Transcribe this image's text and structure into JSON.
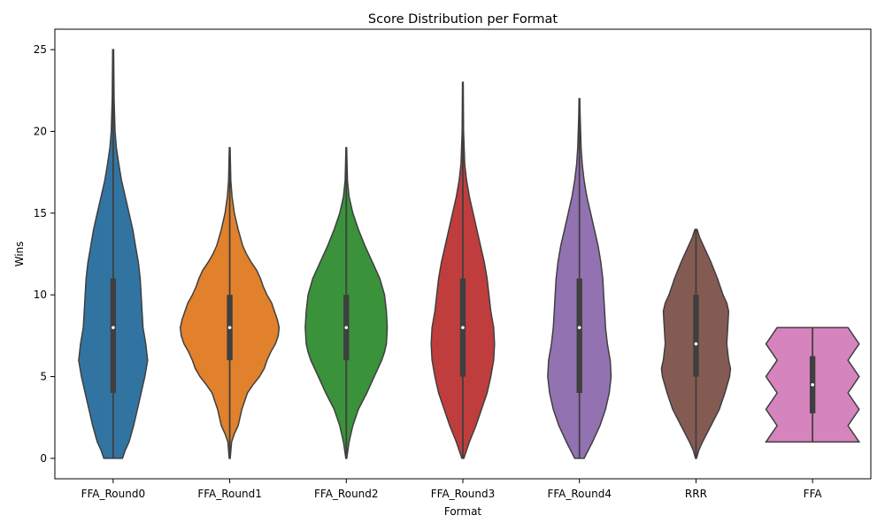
{
  "chart_data": {
    "type": "violin",
    "title": "Score Distribution per Format",
    "xlabel": "Format",
    "ylabel": "Wins",
    "ylim": [
      -1.25,
      26.25
    ],
    "yticks": [
      0,
      5,
      10,
      15,
      20,
      25
    ],
    "grid": false,
    "legend": false,
    "categories": [
      "FFA_Round0",
      "FFA_Round1",
      "FFA_Round2",
      "FFA_Round3",
      "FFA_Round4",
      "RRR",
      "FFA"
    ],
    "series": [
      {
        "color": "#3274a1",
        "min": 0,
        "q1": 4,
        "median": 8,
        "q3": 11,
        "max": 25,
        "outline": [
          [
            0,
            0.1
          ],
          [
            0.5,
            0.13
          ],
          [
            1,
            0.17
          ],
          [
            2,
            0.22
          ],
          [
            3,
            0.26
          ],
          [
            4,
            0.3
          ],
          [
            5,
            0.34
          ],
          [
            6,
            0.37
          ],
          [
            7,
            0.35
          ],
          [
            8,
            0.32
          ],
          [
            9,
            0.31
          ],
          [
            10,
            0.3
          ],
          [
            11,
            0.29
          ],
          [
            12,
            0.27
          ],
          [
            13,
            0.24
          ],
          [
            14,
            0.21
          ],
          [
            15,
            0.17
          ],
          [
            16,
            0.13
          ],
          [
            17,
            0.09
          ],
          [
            18,
            0.06
          ],
          [
            19,
            0.035
          ],
          [
            20,
            0.02
          ],
          [
            22,
            0.01
          ],
          [
            25,
            0.005
          ]
        ]
      },
      {
        "color": "#e1812c",
        "min": 0,
        "q1": 6,
        "median": 8,
        "q3": 10,
        "max": 19,
        "outline": [
          [
            0,
            0.005
          ],
          [
            1,
            0.02
          ],
          [
            1.5,
            0.05
          ],
          [
            2,
            0.09
          ],
          [
            3,
            0.13
          ],
          [
            4,
            0.19
          ],
          [
            4.5,
            0.25
          ],
          [
            5,
            0.32
          ],
          [
            5.5,
            0.37
          ],
          [
            6,
            0.4
          ],
          [
            6.5,
            0.44
          ],
          [
            7,
            0.49
          ],
          [
            7.5,
            0.52
          ],
          [
            8,
            0.53
          ],
          [
            8.5,
            0.51
          ],
          [
            9,
            0.48
          ],
          [
            9.5,
            0.45
          ],
          [
            10,
            0.4
          ],
          [
            10.5,
            0.36
          ],
          [
            11,
            0.33
          ],
          [
            11.5,
            0.29
          ],
          [
            12,
            0.23
          ],
          [
            12.5,
            0.18
          ],
          [
            13,
            0.14
          ],
          [
            14,
            0.09
          ],
          [
            15,
            0.05
          ],
          [
            16,
            0.025
          ],
          [
            17,
            0.012
          ],
          [
            19,
            0.004
          ]
        ]
      },
      {
        "color": "#3a923a",
        "min": 0,
        "q1": 6,
        "median": 8,
        "q3": 10,
        "max": 19,
        "outline": [
          [
            0,
            0.005
          ],
          [
            1,
            0.03
          ],
          [
            2,
            0.07
          ],
          [
            3,
            0.13
          ],
          [
            4,
            0.22
          ],
          [
            5,
            0.3
          ],
          [
            6,
            0.38
          ],
          [
            6.5,
            0.41
          ],
          [
            7,
            0.43
          ],
          [
            8,
            0.44
          ],
          [
            9,
            0.43
          ],
          [
            10,
            0.41
          ],
          [
            11,
            0.36
          ],
          [
            12,
            0.28
          ],
          [
            13,
            0.2
          ],
          [
            14,
            0.13
          ],
          [
            15,
            0.07
          ],
          [
            16,
            0.03
          ],
          [
            17,
            0.012
          ],
          [
            19,
            0.004
          ]
        ]
      },
      {
        "color": "#c03d3e",
        "min": 0,
        "q1": 5,
        "median": 8,
        "q3": 11,
        "max": 23,
        "outline": [
          [
            0,
            0.01
          ],
          [
            1,
            0.07
          ],
          [
            2,
            0.14
          ],
          [
            3,
            0.2
          ],
          [
            4,
            0.26
          ],
          [
            5,
            0.3
          ],
          [
            6,
            0.33
          ],
          [
            7,
            0.34
          ],
          [
            8,
            0.33
          ],
          [
            9,
            0.3
          ],
          [
            10,
            0.28
          ],
          [
            11,
            0.26
          ],
          [
            12,
            0.23
          ],
          [
            13,
            0.19
          ],
          [
            14,
            0.15
          ],
          [
            15,
            0.11
          ],
          [
            16,
            0.07
          ],
          [
            17,
            0.04
          ],
          [
            18,
            0.02
          ],
          [
            20,
            0.008
          ],
          [
            23,
            0.004
          ]
        ]
      },
      {
        "color": "#9372b2",
        "min": 0,
        "q1": 4,
        "median": 8,
        "q3": 11,
        "max": 22,
        "outline": [
          [
            0,
            0.05
          ],
          [
            1,
            0.14
          ],
          [
            2,
            0.22
          ],
          [
            3,
            0.28
          ],
          [
            4,
            0.32
          ],
          [
            5,
            0.34
          ],
          [
            6,
            0.33
          ],
          [
            7,
            0.3
          ],
          [
            8,
            0.28
          ],
          [
            9,
            0.27
          ],
          [
            10,
            0.26
          ],
          [
            11,
            0.25
          ],
          [
            12,
            0.23
          ],
          [
            13,
            0.2
          ],
          [
            14,
            0.16
          ],
          [
            15,
            0.12
          ],
          [
            16,
            0.08
          ],
          [
            17,
            0.05
          ],
          [
            18,
            0.03
          ],
          [
            19,
            0.018
          ],
          [
            21,
            0.007
          ],
          [
            22,
            0.004
          ]
        ]
      },
      {
        "color": "#845b53",
        "min": 0,
        "q1": 5,
        "median": 7,
        "q3": 10,
        "max": 14,
        "outline": [
          [
            0,
            0.005
          ],
          [
            0.5,
            0.03
          ],
          [
            1,
            0.07
          ],
          [
            2,
            0.16
          ],
          [
            3,
            0.25
          ],
          [
            4,
            0.31
          ],
          [
            5,
            0.36
          ],
          [
            5.5,
            0.37
          ],
          [
            6,
            0.35
          ],
          [
            7,
            0.33
          ],
          [
            8,
            0.34
          ],
          [
            9,
            0.35
          ],
          [
            9.5,
            0.33
          ],
          [
            10,
            0.29
          ],
          [
            11,
            0.23
          ],
          [
            12,
            0.16
          ],
          [
            13,
            0.08
          ],
          [
            13.5,
            0.04
          ],
          [
            14,
            0.012
          ]
        ]
      },
      {
        "color": "#d684bd",
        "min": 1,
        "q1": 2.75,
        "median": 4.5,
        "q3": 6.25,
        "max": 8,
        "outline": [
          [
            1,
            0.5
          ],
          [
            1.5,
            0.44
          ],
          [
            2,
            0.38
          ],
          [
            2.5,
            0.44
          ],
          [
            3,
            0.5
          ],
          [
            3.5,
            0.44
          ],
          [
            4,
            0.38
          ],
          [
            4.5,
            0.44
          ],
          [
            5,
            0.5
          ],
          [
            5.5,
            0.44
          ],
          [
            6,
            0.38
          ],
          [
            6.5,
            0.44
          ],
          [
            7,
            0.5
          ],
          [
            7.5,
            0.44
          ],
          [
            8,
            0.38
          ]
        ]
      }
    ]
  }
}
